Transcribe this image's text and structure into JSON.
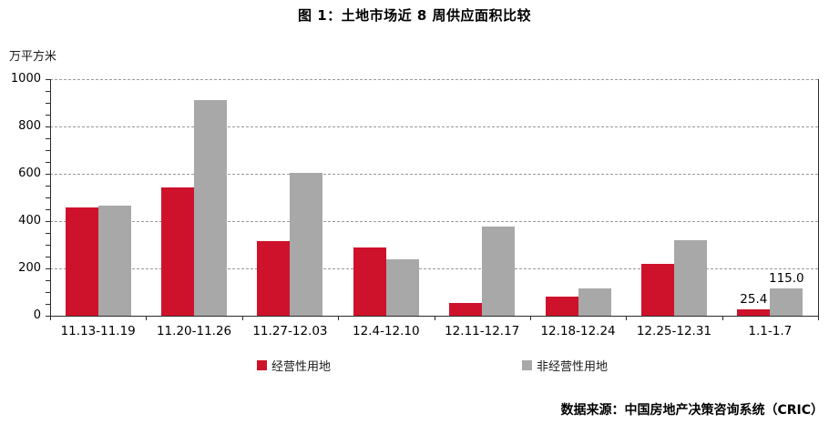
{
  "chart_data": {
    "type": "bar",
    "title": "图 1：土地市场近 8 周供应面积比较",
    "unit_label": "万平方米",
    "source": "数据来源：中国房地产决策咨询系统（CRIC）",
    "categories": [
      "11.13-11.19",
      "11.20-11.26",
      "11.27-12.03",
      "12.4-12.10",
      "12.11-12.17",
      "12.18-12.24",
      "12.25-12.31",
      "1.1-1.7"
    ],
    "series": [
      {
        "name": "经营性用地",
        "color": "#CE122B",
        "values": [
          458,
          543,
          315,
          290,
          53,
          82,
          218,
          25.4
        ],
        "point_labels": [
          null,
          null,
          null,
          null,
          null,
          null,
          null,
          "25.4"
        ]
      },
      {
        "name": "非经营性用地",
        "color": "#A8A8A8",
        "values": [
          465,
          910,
          605,
          238,
          378,
          117,
          320,
          115
        ],
        "point_labels": [
          null,
          null,
          null,
          null,
          null,
          null,
          null,
          "115.0"
        ]
      }
    ],
    "ylim": [
      0,
      1000
    ],
    "yticks": [
      0,
      200,
      400,
      600,
      800,
      1000
    ],
    "grid": "horizontal-dashed",
    "grid_color": "#9A9A9A",
    "axis_color": "#2B2B2B",
    "legend_position": "bottom"
  }
}
